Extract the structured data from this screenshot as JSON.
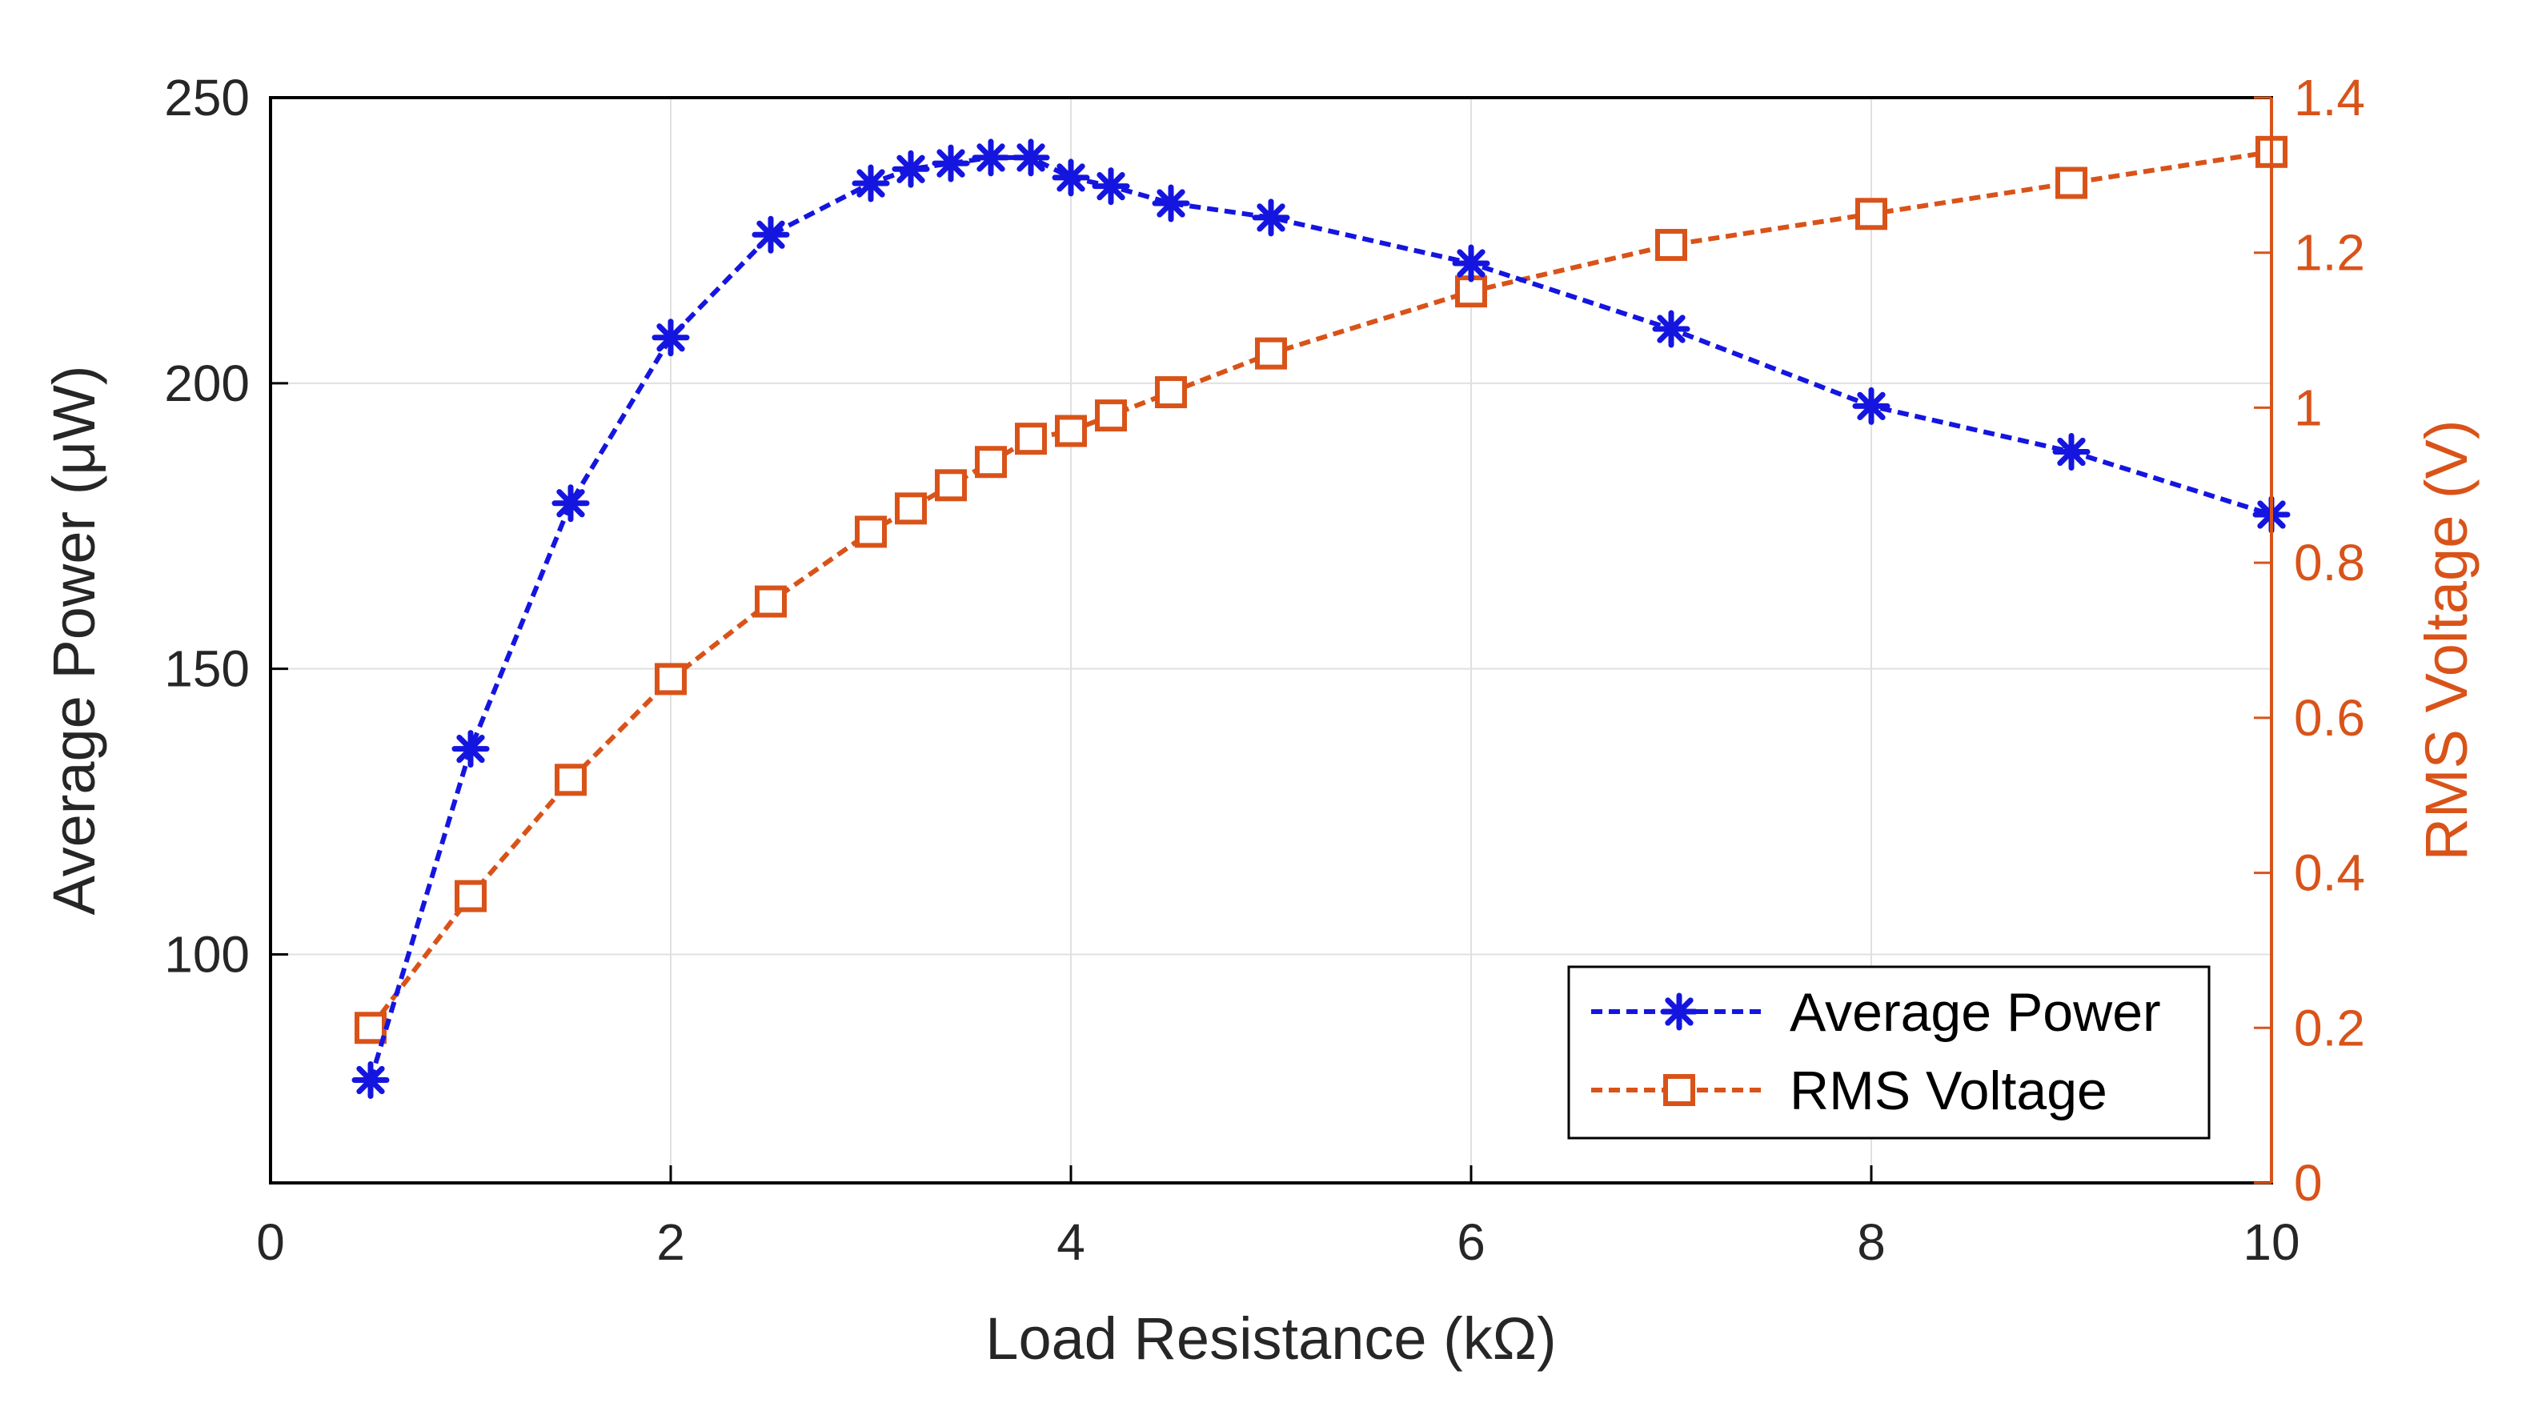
{
  "chart_data": {
    "type": "line",
    "title": "",
    "xlabel": "Load Resistance (kΩ)",
    "ylabel_left": "Average Power (μW)",
    "ylabel_right": "RMS Voltage (V)",
    "xlim": [
      0,
      10
    ],
    "ylim_left": [
      60,
      250
    ],
    "ylim_right": [
      0,
      1.4
    ],
    "x_ticks": [
      "0",
      "2",
      "4",
      "6",
      "8",
      "10"
    ],
    "y_left_ticks": [
      "100",
      "150",
      "200",
      "250"
    ],
    "y_right_ticks": [
      "0",
      "0.2",
      "0.4",
      "0.6",
      "0.8",
      "1",
      "1.2",
      "1.4"
    ],
    "grid": true,
    "legend_position": "bottom-right",
    "series": [
      {
        "name": "Average Power",
        "axis": "left",
        "color": "#1515e0",
        "marker": "asterisk",
        "x": [
          0.5,
          1,
          1.5,
          2,
          2.5,
          3,
          3.2,
          3.4,
          3.6,
          3.8,
          4,
          4.2,
          4.5,
          5,
          6,
          7,
          8,
          9,
          10
        ],
        "values": [
          78,
          136,
          179,
          208,
          226,
          235,
          237.5,
          238.5,
          239.5,
          239.5,
          236,
          234.5,
          231.5,
          229,
          221,
          209.5,
          196,
          188,
          177
        ]
      },
      {
        "name": "RMS Voltage",
        "axis": "right",
        "color": "#d95319",
        "marker": "square",
        "x": [
          0.5,
          1,
          1.5,
          2,
          2.5,
          3,
          3.2,
          3.4,
          3.6,
          3.8,
          4,
          4.2,
          4.5,
          5,
          6,
          7,
          8,
          9,
          10
        ],
        "values": [
          0.2,
          0.37,
          0.52,
          0.65,
          0.75,
          0.84,
          0.87,
          0.9,
          0.93,
          0.96,
          0.97,
          0.99,
          1.02,
          1.07,
          1.15,
          1.21,
          1.25,
          1.29,
          1.33
        ]
      }
    ]
  }
}
